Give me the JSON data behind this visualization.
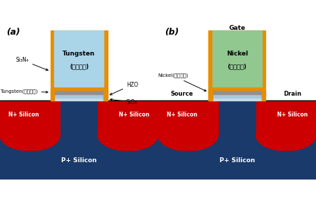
{
  "fig_width": 4.55,
  "fig_height": 2.9,
  "dpi": 100,
  "bg_color": "#ffffff",
  "panel_a": {
    "label": "(a)",
    "silicon_p_color": "#1a3a6b",
    "silicon_n_color": "#cc0000",
    "silicon_p_label": "P+ Silicon",
    "silicon_n_label": "N+ Silicon",
    "gate_outer_color": "#e88c00",
    "gate_inner_color": "#aad4e8",
    "gate_label_line1": "Tungsten",
    "gate_label_line2": "(상부금속)",
    "bottom_metal_color": "#808080",
    "annotation_si3n4": "Si₃N₄",
    "annotation_hzo": "HZO",
    "annotation_sio2": "SiO₂",
    "annotation_tungsten": "Tungsten(하부금속)"
  },
  "panel_b": {
    "label": "(b)",
    "gate_label_top": "Gate",
    "source_label": "Source",
    "drain_label": "Drain",
    "silicon_p_color": "#1a3a6b",
    "silicon_n_color": "#cc0000",
    "silicon_p_label": "P+ Silicon",
    "silicon_n_label": "N+ Silicon",
    "gate_outer_color": "#e88c00",
    "gate_inner_color": "#90c890",
    "gate_label_line1": "Nickel",
    "gate_label_line2": "(상부금속)",
    "annotation_nickel": "Nickel(하부금속)"
  }
}
